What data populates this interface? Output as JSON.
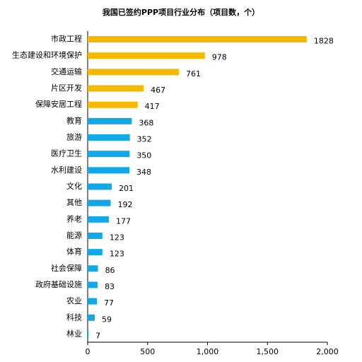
{
  "chart_data": {
    "type": "bar",
    "orientation": "horizontal",
    "title": "我国已签约PPP项目行业分布（项目数，个）",
    "categories": [
      "市政工程",
      "生态建设和环境保护",
      "交通运输",
      "片区开发",
      "保障安居工程",
      "教育",
      "旅游",
      "医疗卫生",
      "水利建设",
      "文化",
      "其他",
      "养老",
      "能源",
      "体育",
      "社会保障",
      "政府基础设施",
      "农业",
      "科技",
      "林业"
    ],
    "values": [
      1828,
      978,
      761,
      467,
      417,
      368,
      352,
      350,
      348,
      201,
      192,
      177,
      123,
      123,
      86,
      83,
      77,
      59,
      7
    ],
    "colors": [
      "#f5b800",
      "#f5b800",
      "#f5b800",
      "#f5b800",
      "#f5b800",
      "#12a8e8",
      "#12a8e8",
      "#12a8e8",
      "#12a8e8",
      "#12a8e8",
      "#12a8e8",
      "#12a8e8",
      "#12a8e8",
      "#12a8e8",
      "#12a8e8",
      "#12a8e8",
      "#12a8e8",
      "#12a8e8",
      "#12a8e8"
    ],
    "xlim": [
      0,
      2000
    ],
    "xticks": [
      0,
      500,
      {
        "value": 1000,
        "label": "1,000"
      },
      {
        "value": 1500,
        "label": "1,500"
      },
      {
        "value": 2000,
        "label": "2,000"
      }
    ],
    "grid": false
  }
}
